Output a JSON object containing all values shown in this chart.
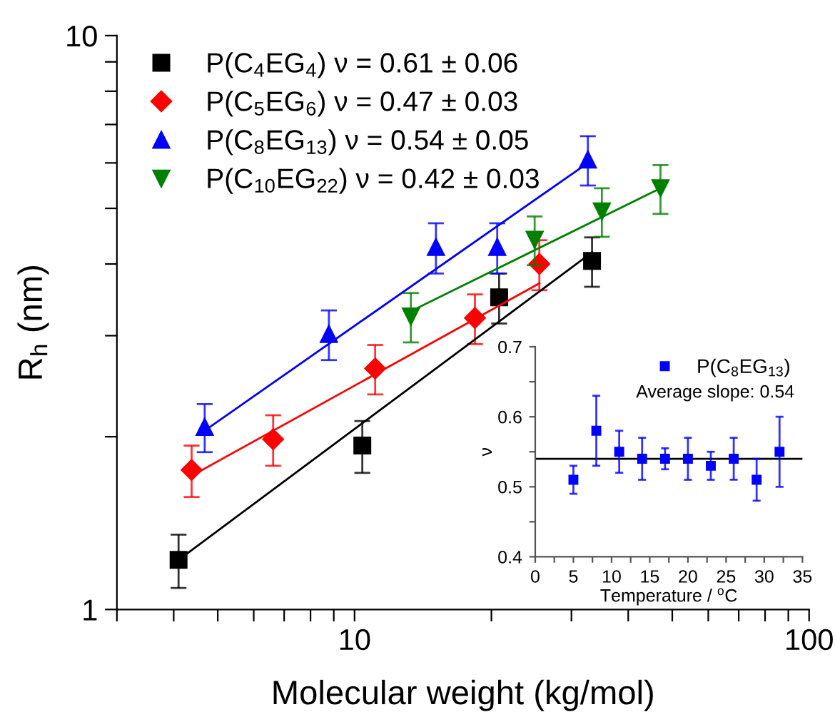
{
  "chart_data": [
    {
      "type": "scatter",
      "xlabel": "Molecular weight (kg/mol)",
      "ylabel": "R$_{h}$ (nm)",
      "log": "xy",
      "xlim": [
        3,
        100
      ],
      "ylim": [
        1,
        10
      ],
      "xticks": [
        {
          "value": 3,
          "label": null
        },
        {
          "value": 4,
          "label": null
        },
        {
          "value": 5,
          "label": null
        },
        {
          "value": 6,
          "label": null
        },
        {
          "value": 7,
          "label": null
        },
        {
          "value": 8,
          "label": null
        },
        {
          "value": 9,
          "label": null
        },
        10,
        {
          "value": 20,
          "label": null
        },
        {
          "value": 30,
          "label": null
        },
        {
          "value": 40,
          "label": null
        },
        {
          "value": 50,
          "label": null
        },
        {
          "value": 60,
          "label": null
        },
        {
          "value": 70,
          "label": null
        },
        {
          "value": 80,
          "label": null
        },
        {
          "value": 90,
          "label": null
        },
        100
      ],
      "yticks": [
        1,
        {
          "value": 2,
          "label": null
        },
        {
          "value": 3,
          "label": null
        },
        {
          "value": 4,
          "label": null
        },
        {
          "value": 5,
          "label": null
        },
        {
          "value": 6,
          "label": null
        },
        {
          "value": 7,
          "label": null
        },
        {
          "value": 8,
          "label": null
        },
        {
          "value": 9,
          "label": null
        },
        10
      ],
      "legend": "top left",
      "grid": false,
      "series": [
        {
          "name": "P(C$_{4}$EG$_{4}$) ν = 0.61 ± 0.06",
          "color": "#000000",
          "marker": "square",
          "x": [
            4.1,
            10.4,
            20.8,
            33.3
          ],
          "values": [
            1.22,
            1.93,
            3.5,
            4.05
          ],
          "errors": [
            0.13,
            0.2,
            0.35,
            0.4
          ]
        },
        {
          "name": "P(C$_{5}$EG$_{6}$) ν = 0.47 ± 0.03",
          "color": "#ff0000",
          "marker": "diamond",
          "x": [
            4.38,
            6.62,
            11.1,
            18.4,
            25.5
          ],
          "values": [
            1.75,
            1.98,
            2.63,
            3.22,
            4.0
          ],
          "errors": [
            0.18,
            0.2,
            0.26,
            0.32,
            0.4
          ]
        },
        {
          "name": "P(C$_{8}$EG$_{13}$) ν = 0.54 ± 0.05",
          "color": "#0000ff",
          "marker": "triangle",
          "x": [
            4.68,
            8.78,
            15.1,
            20.6,
            32.6
          ],
          "values": [
            2.08,
            3.02,
            4.28,
            4.28,
            6.08
          ],
          "errors": [
            0.2,
            0.3,
            0.43,
            0.43,
            0.6
          ]
        },
        {
          "name": "P(C$_{10}$EG$_{22}$) ν = 0.42 ± 0.03",
          "color": "#008000",
          "marker": "triangle-down",
          "x": [
            13.3,
            24.9,
            35.0,
            47.1
          ],
          "values": [
            3.24,
            4.41,
            4.94,
            5.42
          ],
          "errors": [
            0.32,
            0.43,
            0.48,
            0.53
          ]
        },
        {
          "type": "line",
          "color": "#000000",
          "x": [
            4.1,
            33.3
          ],
          "values": [
            1.22,
            4.19
          ]
        },
        {
          "type": "line",
          "color": "#ff0000",
          "x": [
            4.38,
            25.5
          ],
          "values": [
            1.71,
            3.7
          ]
        },
        {
          "type": "line",
          "color": "#0000ff",
          "x": [
            4.68,
            32.6
          ],
          "values": [
            2.05,
            6.0
          ]
        },
        {
          "type": "line",
          "color": "#008000",
          "x": [
            13.3,
            47.1
          ],
          "values": [
            3.31,
            5.42
          ]
        }
      ]
    },
    {
      "type": "scatter",
      "xlabel": "Temperature / $^{o}$C",
      "ylabel": "ν",
      "xlim": [
        0,
        35
      ],
      "ylim": [
        0.4,
        0.7
      ],
      "xticks": [
        0,
        {
          "value": 2.5,
          "label": null
        },
        5,
        {
          "value": 7.5,
          "label": null
        },
        10,
        {
          "value": 12.5,
          "label": null
        },
        15,
        {
          "value": 17.5,
          "label": null
        },
        20,
        {
          "value": 22.5,
          "label": null
        },
        25,
        {
          "value": 27.5,
          "label": null
        },
        30,
        {
          "value": 32.5,
          "label": null
        },
        35
      ],
      "yticks": [
        0.4,
        {
          "value": 0.45,
          "label": null
        },
        0.5,
        {
          "value": 0.55,
          "label": null
        },
        0.6,
        {
          "value": 0.65,
          "label": null
        },
        0.7
      ],
      "legend": "top right",
      "grid": false,
      "annotations": [
        "Average slope: 0.54"
      ],
      "ref_lines": [
        {
          "axis": "y",
          "value": 0.54,
          "color": "#000000"
        }
      ],
      "series": [
        {
          "name": "P(C$_{8}$EG$_{13}$)",
          "color": "#0000ff",
          "marker": "square",
          "x": [
            5,
            8,
            11,
            14,
            17,
            20,
            23,
            26,
            29,
            32
          ],
          "values": [
            0.51,
            0.58,
            0.55,
            0.54,
            0.54,
            0.54,
            0.53,
            0.54,
            0.51,
            0.55
          ],
          "errors": [
            0.02,
            0.05,
            0.03,
            0.03,
            0.015,
            0.03,
            0.02,
            0.03,
            0.03,
            0.05
          ]
        }
      ]
    }
  ]
}
